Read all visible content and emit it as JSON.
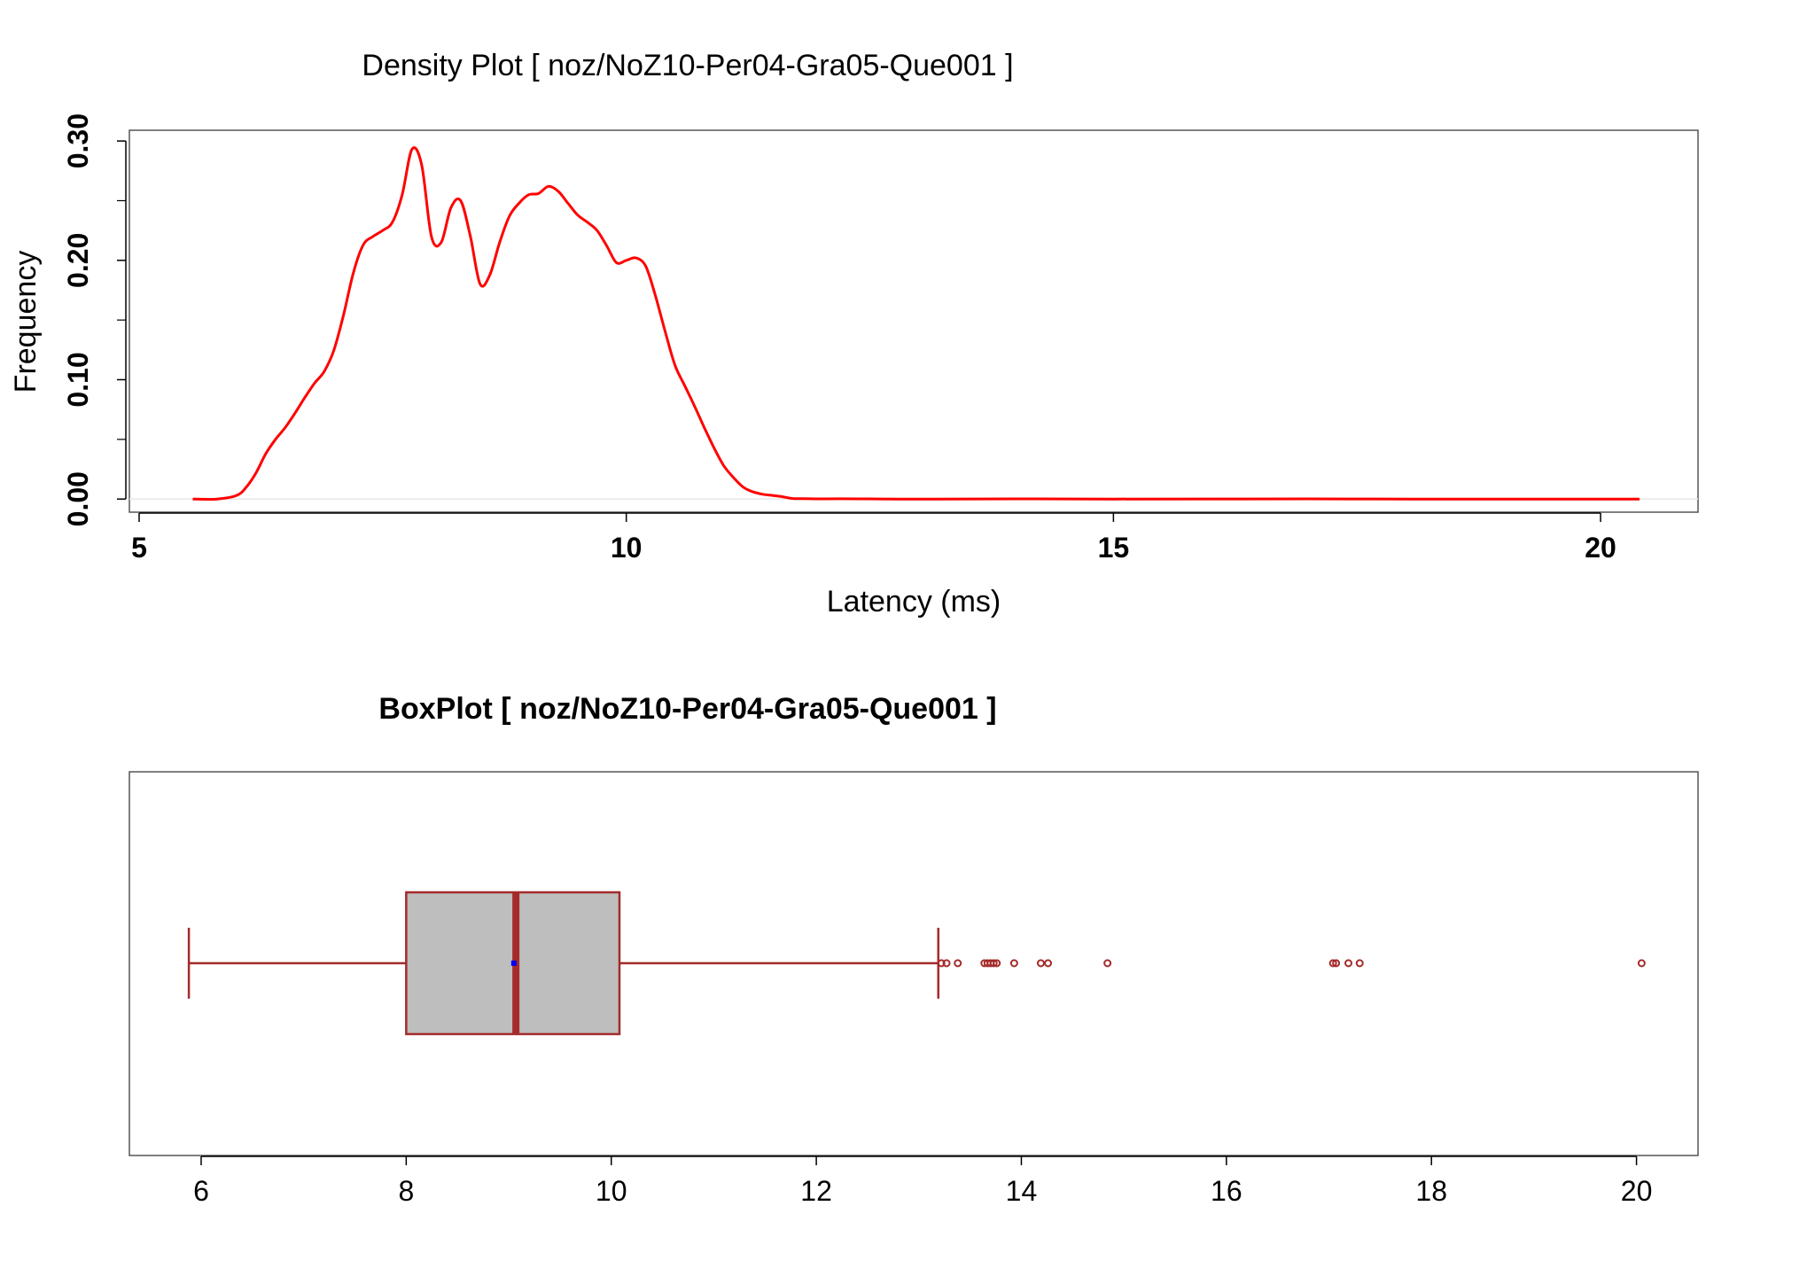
{
  "chart_data": [
    {
      "type": "line",
      "title": "Density Plot [ noz/NoZ10-Per04-Gra05-Que001 ]",
      "xlabel": "Latency (ms)",
      "ylabel": "Frequency",
      "xlim": [
        4.9,
        21.0
      ],
      "ylim": [
        -0.011,
        0.309
      ],
      "xticks": [
        5,
        10,
        15,
        20
      ],
      "xtick_labels": [
        "5",
        "10",
        "15",
        "20"
      ],
      "yticks": [
        0.0,
        0.1,
        0.2,
        0.3
      ],
      "ytick_labels": [
        "0.00",
        "0.10",
        "0.20",
        "0.30"
      ],
      "yminor_ticks": [
        0.05,
        0.15,
        0.25
      ],
      "grid": false,
      "line_color": "#ff0000",
      "series": [
        {
          "x": [
            5.55,
            5.8,
            6.0,
            6.1,
            6.2,
            6.3,
            6.4,
            6.5,
            6.6,
            6.7,
            6.8,
            6.9,
            7.0,
            7.1,
            7.2,
            7.3,
            7.4,
            7.5,
            7.6,
            7.7,
            7.8,
            7.9,
            8.0,
            8.1,
            8.2,
            8.3,
            8.4,
            8.5,
            8.6,
            8.7,
            8.8,
            8.9,
            9.0,
            9.1,
            9.2,
            9.3,
            9.4,
            9.5,
            9.6,
            9.7,
            9.8,
            9.9,
            10.0,
            10.1,
            10.2,
            10.3,
            10.4,
            10.5,
            10.6,
            10.7,
            10.8,
            10.9,
            11.0,
            11.1,
            11.2,
            11.3,
            11.4,
            11.5,
            11.6,
            11.7,
            11.8,
            11.9,
            12.0,
            12.2,
            12.5,
            12.8,
            13.2,
            14.0,
            15.0,
            17.0,
            18.0,
            19.0,
            20.0,
            20.4
          ],
          "y": [
            0.0,
            0.0,
            0.003,
            0.01,
            0.022,
            0.038,
            0.05,
            0.06,
            0.072,
            0.085,
            0.097,
            0.107,
            0.125,
            0.155,
            0.19,
            0.213,
            0.22,
            0.225,
            0.232,
            0.255,
            0.293,
            0.28,
            0.22,
            0.215,
            0.244,
            0.25,
            0.22,
            0.18,
            0.188,
            0.215,
            0.237,
            0.248,
            0.255,
            0.256,
            0.262,
            0.258,
            0.248,
            0.238,
            0.232,
            0.225,
            0.212,
            0.198,
            0.2,
            0.202,
            0.195,
            0.17,
            0.14,
            0.112,
            0.095,
            0.078,
            0.06,
            0.043,
            0.028,
            0.018,
            0.01,
            0.006,
            0.004,
            0.003,
            0.002,
            0.0005,
            0.0003,
            0.0002,
            0.0001,
            0.0002,
            0.0001,
            0.0,
            0.0,
            0.0001,
            0.0,
            0.0001,
            0.0,
            0.0,
            0.0,
            0.0
          ]
        }
      ]
    },
    {
      "type": "box",
      "title": "BoxPlot [ noz/NoZ10-Per04-Gra05-Que001 ]",
      "xlim": [
        5.3,
        20.6
      ],
      "xticks": [
        6,
        8,
        10,
        12,
        14,
        16,
        18,
        20
      ],
      "xtick_labels": [
        "6",
        "8",
        "10",
        "12",
        "14",
        "16",
        "18",
        "20"
      ],
      "whisker_low": 5.88,
      "q1": 8.0,
      "median": 9.07,
      "q3": 10.08,
      "whisker_high": 13.19,
      "mean": 9.05,
      "outliers": [
        13.22,
        13.27,
        13.38,
        13.64,
        13.67,
        13.7,
        13.73,
        13.76,
        13.93,
        14.19,
        14.26,
        14.84,
        17.04,
        17.07,
        17.19,
        17.3,
        20.05
      ],
      "box_fill": "#bebebe",
      "edge_color": "#a52a2a",
      "mean_color": "#0000ff"
    }
  ]
}
